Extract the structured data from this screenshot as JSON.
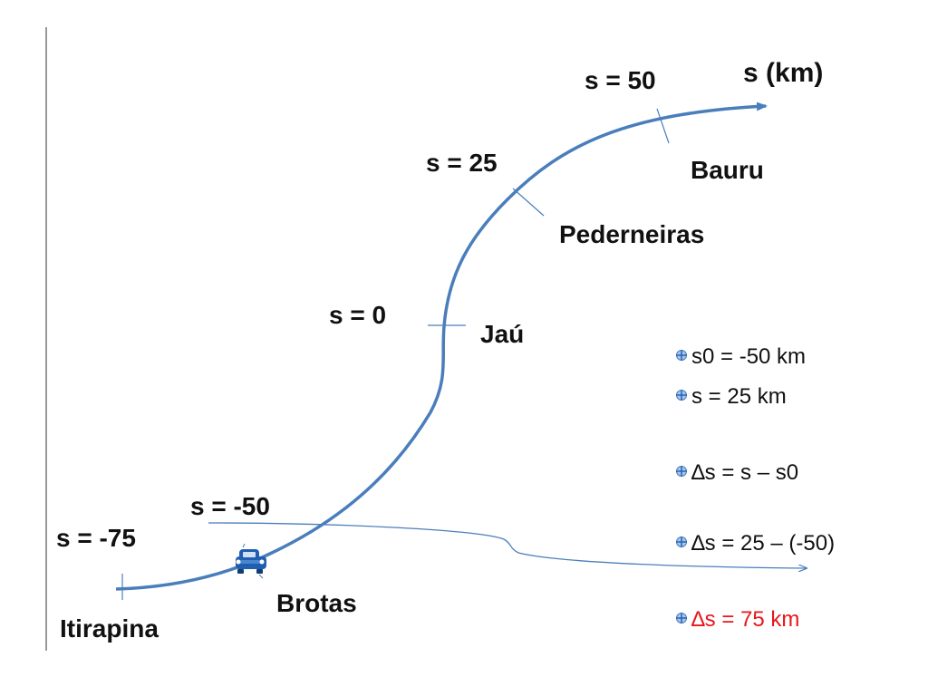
{
  "axis_label": "s (km)",
  "markers": {
    "s_m75": "s = -75",
    "s_m50": "s = -50",
    "s_0": "s = 0",
    "s_25": "s = 25",
    "s_50": "s = 50"
  },
  "cities": {
    "itirapina": "Itirapina",
    "brotas": "Brotas",
    "jau": "Jaú",
    "pederneiras": "Pederneiras",
    "bauru": "Bauru"
  },
  "bullets": [
    {
      "text": "s0 = -50 km"
    },
    {
      "text": "s = 25 km"
    },
    {
      "text": "∆s = s – s0"
    },
    {
      "text": "∆s = 25 – (-50)"
    },
    {
      "text": "∆s = 75 km"
    }
  ],
  "colors": {
    "road": "#4a7ebb",
    "result": "#e8161b"
  },
  "icons": [
    "car-icon",
    "bullet-icon"
  ]
}
